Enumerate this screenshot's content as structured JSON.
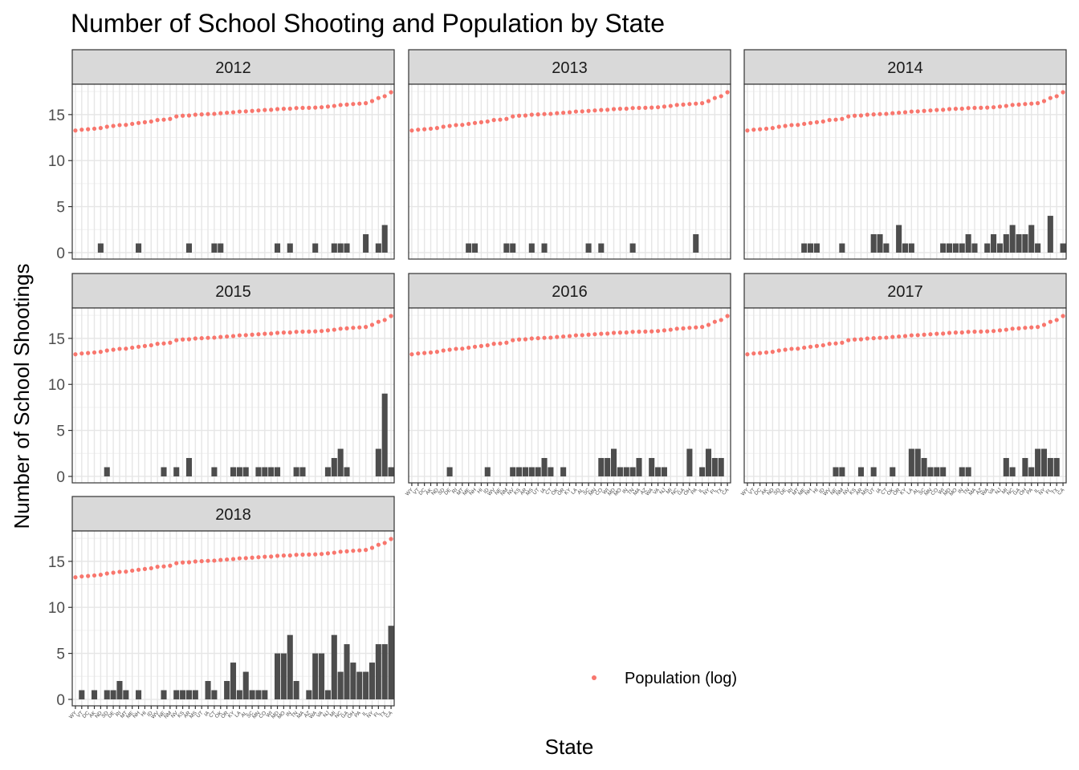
{
  "chart_data": {
    "type": "bar",
    "title": "Number of School Shooting and Population by State",
    "xlabel": "State",
    "ylabel": "Number of School Shootings",
    "ylim": [
      -0.7,
      18.3
    ],
    "y_ticks": [
      0,
      5,
      10,
      15
    ],
    "grid": true,
    "legend": {
      "position": "bottom-right",
      "items": [
        {
          "label": "Population (log)",
          "color": "#F8766D"
        }
      ]
    },
    "states": [
      "WY",
      "VT",
      "DC",
      "AK",
      "ND",
      "SD",
      "DE",
      "RI",
      "MT",
      "ME",
      "NH",
      "HI",
      "ID",
      "WV",
      "NE",
      "NM",
      "NV",
      "KS",
      "AR",
      "MS",
      "UT",
      "IA",
      "CT",
      "OK",
      "OR",
      "KY",
      "LA",
      "AL",
      "SC",
      "MN",
      "CO",
      "WI",
      "MD",
      "MO",
      "IN",
      "TN",
      "MA",
      "AZ",
      "WA",
      "VA",
      "NJ",
      "MI",
      "NC",
      "GA",
      "OH",
      "PA",
      "IL",
      "NY",
      "FL",
      "TX",
      "CA"
    ],
    "population_log": [
      13.27,
      13.36,
      13.41,
      13.47,
      13.54,
      13.68,
      13.77,
      13.86,
      13.88,
      13.99,
      14.09,
      14.17,
      14.25,
      14.41,
      14.45,
      14.53,
      14.8,
      14.88,
      14.9,
      14.99,
      15.02,
      15.06,
      15.08,
      15.15,
      15.2,
      15.25,
      15.33,
      15.35,
      15.4,
      15.45,
      15.5,
      15.52,
      15.6,
      15.63,
      15.64,
      15.71,
      15.73,
      15.74,
      15.76,
      15.8,
      15.87,
      15.94,
      16.05,
      16.09,
      16.15,
      16.19,
      16.24,
      16.47,
      16.8,
      17.0,
      17.43
    ],
    "series_marker_color": "#F8766D",
    "bar_color": "#4D4D4D",
    "panels": [
      {
        "year": "2012",
        "values": [
          0,
          0,
          0,
          0,
          1,
          0,
          0,
          0,
          0,
          0,
          1,
          0,
          0,
          0,
          0,
          0,
          0,
          0,
          1,
          0,
          0,
          0,
          1,
          1,
          0,
          0,
          0,
          0,
          0,
          0,
          0,
          0,
          1,
          0,
          1,
          0,
          0,
          0,
          1,
          0,
          0,
          1,
          1,
          1,
          0,
          0,
          2,
          0,
          1,
          3,
          0
        ]
      },
      {
        "year": "2013",
        "values": [
          0,
          0,
          0,
          0,
          0,
          0,
          0,
          0,
          0,
          1,
          1,
          0,
          0,
          0,
          0,
          1,
          1,
          0,
          0,
          1,
          0,
          1,
          0,
          0,
          0,
          0,
          0,
          0,
          1,
          0,
          1,
          0,
          0,
          0,
          0,
          1,
          0,
          0,
          0,
          0,
          0,
          0,
          0,
          0,
          0,
          2,
          0,
          0,
          0,
          0,
          0
        ]
      },
      {
        "year": "2014",
        "values": [
          0,
          0,
          0,
          0,
          0,
          0,
          0,
          0,
          0,
          1,
          1,
          1,
          0,
          0,
          0,
          1,
          0,
          0,
          0,
          0,
          2,
          2,
          1,
          0,
          3,
          1,
          1,
          0,
          0,
          0,
          0,
          1,
          1,
          1,
          1,
          2,
          1,
          0,
          1,
          2,
          1,
          2,
          3,
          2,
          2,
          3,
          1,
          0,
          4,
          0,
          1
        ]
      },
      {
        "year": "2015",
        "values": [
          0,
          0,
          0,
          0,
          0,
          1,
          0,
          0,
          0,
          0,
          0,
          0,
          0,
          0,
          1,
          0,
          1,
          0,
          2,
          0,
          0,
          0,
          1,
          0,
          0,
          1,
          1,
          1,
          0,
          1,
          1,
          1,
          1,
          0,
          0,
          1,
          1,
          0,
          0,
          0,
          1,
          2,
          3,
          1,
          0,
          0,
          0,
          0,
          3,
          9,
          1
        ]
      },
      {
        "year": "2016",
        "values": [
          0,
          0,
          0,
          0,
          0,
          0,
          1,
          0,
          0,
          0,
          0,
          0,
          1,
          0,
          0,
          0,
          1,
          1,
          1,
          1,
          1,
          2,
          1,
          0,
          1,
          0,
          0,
          0,
          0,
          0,
          2,
          2,
          3,
          1,
          1,
          1,
          2,
          0,
          2,
          1,
          1,
          0,
          0,
          0,
          3,
          0,
          1,
          3,
          2,
          2,
          0
        ]
      },
      {
        "year": "2017",
        "values": [
          0,
          0,
          0,
          0,
          0,
          0,
          0,
          0,
          0,
          0,
          0,
          0,
          0,
          0,
          1,
          1,
          0,
          0,
          1,
          0,
          1,
          0,
          0,
          1,
          0,
          0,
          3,
          3,
          2,
          1,
          1,
          1,
          0,
          0,
          1,
          1,
          0,
          0,
          0,
          0,
          0,
          2,
          1,
          0,
          2,
          1,
          3,
          3,
          2,
          2,
          0
        ]
      },
      {
        "year": "2018",
        "values": [
          0,
          1,
          0,
          1,
          0,
          1,
          1,
          2,
          1,
          0,
          1,
          0,
          0,
          0,
          1,
          0,
          1,
          1,
          1,
          1,
          0,
          2,
          1,
          0,
          2,
          4,
          1,
          3,
          1,
          1,
          1,
          0,
          5,
          5,
          7,
          2,
          0,
          1,
          5,
          5,
          1,
          7,
          3,
          6,
          4,
          3,
          3,
          4,
          6,
          6,
          8
        ]
      }
    ]
  }
}
